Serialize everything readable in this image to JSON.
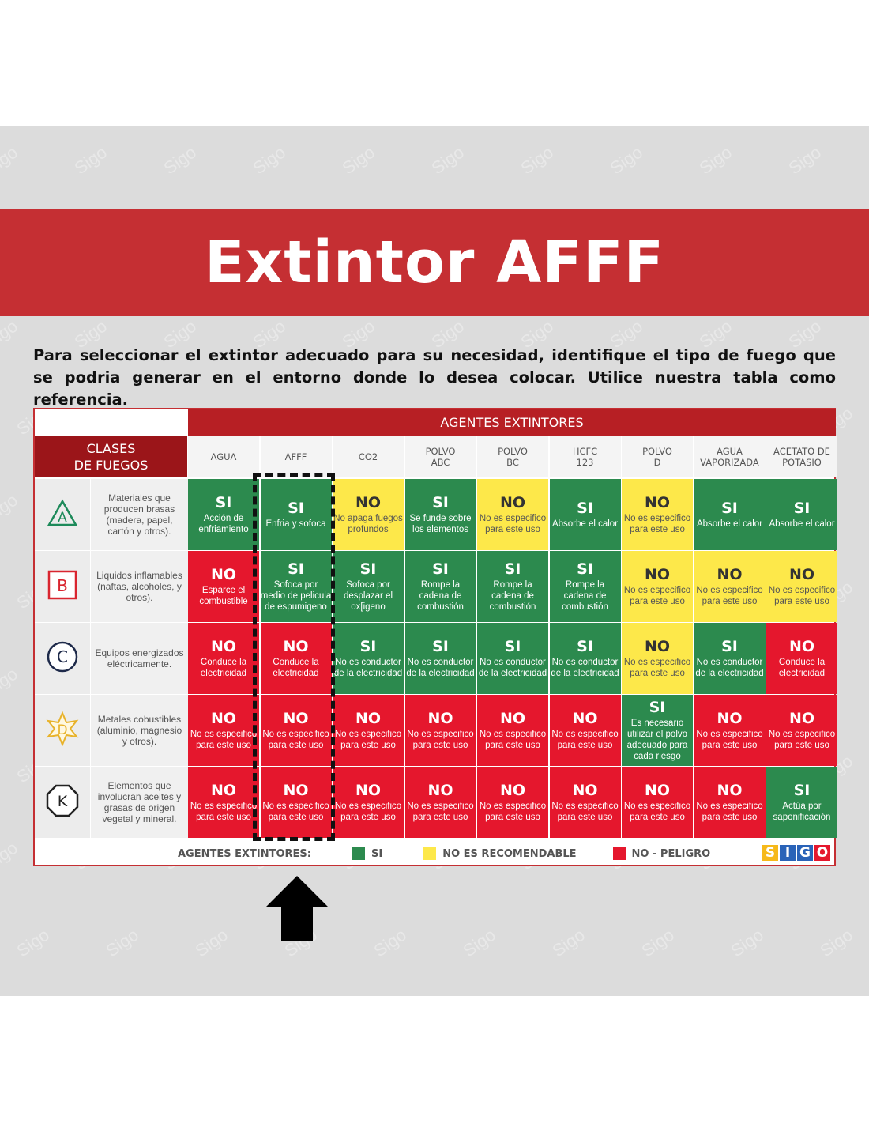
{
  "title": "Extintor AFFF",
  "intro": "Para seleccionar el extintor adecuado para su necesidad, identifique el tipo de fuego que se podria generar en el entorno donde lo desea colocar. Utilice nuestra tabla como referencia.",
  "watermark": "Sigo",
  "colors": {
    "banner": "#c52f33",
    "si": "#2c8a4e",
    "no": "#e5172d",
    "no_recomendable": "#fde84a",
    "header_red": "#b71f24"
  },
  "table": {
    "agents_header": "AGENTES EXTINTORES",
    "classes_header": [
      "CLASES",
      "DE FUEGOS"
    ],
    "columns": [
      [
        "AGUA"
      ],
      [
        "AFFF"
      ],
      [
        "CO2"
      ],
      [
        "POLVO",
        "ABC"
      ],
      [
        "POLVO",
        "BC"
      ],
      [
        "HCFC",
        "123"
      ],
      [
        "POLVO",
        "D"
      ],
      [
        "AGUA",
        "VAPORIZADA"
      ],
      [
        "ACETATO DE",
        "POTASIO"
      ]
    ],
    "rows": [
      {
        "class_letter": "A",
        "icon": "triangle-icon",
        "description": "Materiales que producen brasas (madera, papel, cartón y otros).",
        "cells": [
          {
            "v": "SI",
            "t": "Acción de enfriamiento"
          },
          {
            "v": "SI",
            "t": "Enfria y sofoca"
          },
          {
            "v": "NO",
            "t": "No apaga fuegos profundos",
            "nr": true
          },
          {
            "v": "SI",
            "t": "Se funde sobre los elementos"
          },
          {
            "v": "NO",
            "t": "No es especifico para este uso",
            "nr": true
          },
          {
            "v": "SI",
            "t": "Absorbe el calor"
          },
          {
            "v": "NO",
            "t": "No es especifico para este uso",
            "nr": true
          },
          {
            "v": "SI",
            "t": "Absorbe el calor"
          },
          {
            "v": "SI",
            "t": "Absorbe el calor"
          }
        ]
      },
      {
        "class_letter": "B",
        "icon": "square-icon",
        "description": "Liquidos inflamables (naftas, alcoholes, y otros).",
        "cells": [
          {
            "v": "NO",
            "t": "Esparce el combustible"
          },
          {
            "v": "SI",
            "t": "Sofoca por medio de pelicula de espumigeno"
          },
          {
            "v": "SI",
            "t": "Sofoca por desplazar el ox[igeno"
          },
          {
            "v": "SI",
            "t": "Rompe la cadena de combustión"
          },
          {
            "v": "SI",
            "t": "Rompe la cadena de combustión"
          },
          {
            "v": "SI",
            "t": "Rompe la cadena de combustión"
          },
          {
            "v": "NO",
            "t": "No es especifico para este uso",
            "nr": true
          },
          {
            "v": "NO",
            "t": "No es especifico para este uso",
            "nr": true
          },
          {
            "v": "NO",
            "t": "No es especifico para este uso",
            "nr": true
          }
        ]
      },
      {
        "class_letter": "C",
        "icon": "circle-icon",
        "description": "Equipos energizados eléctricamente.",
        "cells": [
          {
            "v": "NO",
            "t": "Conduce la electricidad"
          },
          {
            "v": "NO",
            "t": "Conduce la electricidad"
          },
          {
            "v": "SI",
            "t": "No es conductor de la electricidad"
          },
          {
            "v": "SI",
            "t": "No es conductor de la electricidad"
          },
          {
            "v": "SI",
            "t": "No es conductor de la electricidad"
          },
          {
            "v": "SI",
            "t": "No es conductor de la electricidad"
          },
          {
            "v": "NO",
            "t": "No es especifico para este uso",
            "nr": true
          },
          {
            "v": "SI",
            "t": "No es conductor de la electricidad"
          },
          {
            "v": "NO",
            "t": "Conduce la electricidad"
          }
        ]
      },
      {
        "class_letter": "D",
        "icon": "star-icon",
        "description": "Metales cobustibles (aluminio, magnesio y otros).",
        "cells": [
          {
            "v": "NO",
            "t": "No es especifico para este uso"
          },
          {
            "v": "NO",
            "t": "No es especifico para este uso"
          },
          {
            "v": "NO",
            "t": "No es especifico para este uso"
          },
          {
            "v": "NO",
            "t": "No es especifico para este uso"
          },
          {
            "v": "NO",
            "t": "No es especifico para este uso"
          },
          {
            "v": "NO",
            "t": "No es especifico para este uso"
          },
          {
            "v": "SI",
            "t": "Es necesario utilizar el polvo adecuado para cada riesgo"
          },
          {
            "v": "NO",
            "t": "No es especifico para este uso"
          },
          {
            "v": "NO",
            "t": "No es especifico para este uso"
          }
        ]
      },
      {
        "class_letter": "K",
        "icon": "octagon-icon",
        "description": "Elementos que involucran aceites y grasas de origen vegetal y mineral.",
        "cells": [
          {
            "v": "NO",
            "t": "No es especifico para este uso"
          },
          {
            "v": "NO",
            "t": "No es especifico para este uso"
          },
          {
            "v": "NO",
            "t": "No es especifico para este uso"
          },
          {
            "v": "NO",
            "t": "No es especifico para este uso"
          },
          {
            "v": "NO",
            "t": "No es especifico para este uso"
          },
          {
            "v": "NO",
            "t": "No es especifico para este uso"
          },
          {
            "v": "NO",
            "t": "No es especifico para este uso"
          },
          {
            "v": "NO",
            "t": "No es especifico para este uso"
          },
          {
            "v": "SI",
            "t": "Actúa por saponificación"
          }
        ]
      }
    ],
    "legend": {
      "label": "AGENTES EXTINTORES:",
      "si": "SI",
      "no_recomendable": "NO ES RECOMENDABLE",
      "peligro": "NO - PELIGRO"
    },
    "logo_letters": [
      "S",
      "I",
      "G",
      "O"
    ]
  },
  "highlight_arrow": "up-arrow-icon"
}
